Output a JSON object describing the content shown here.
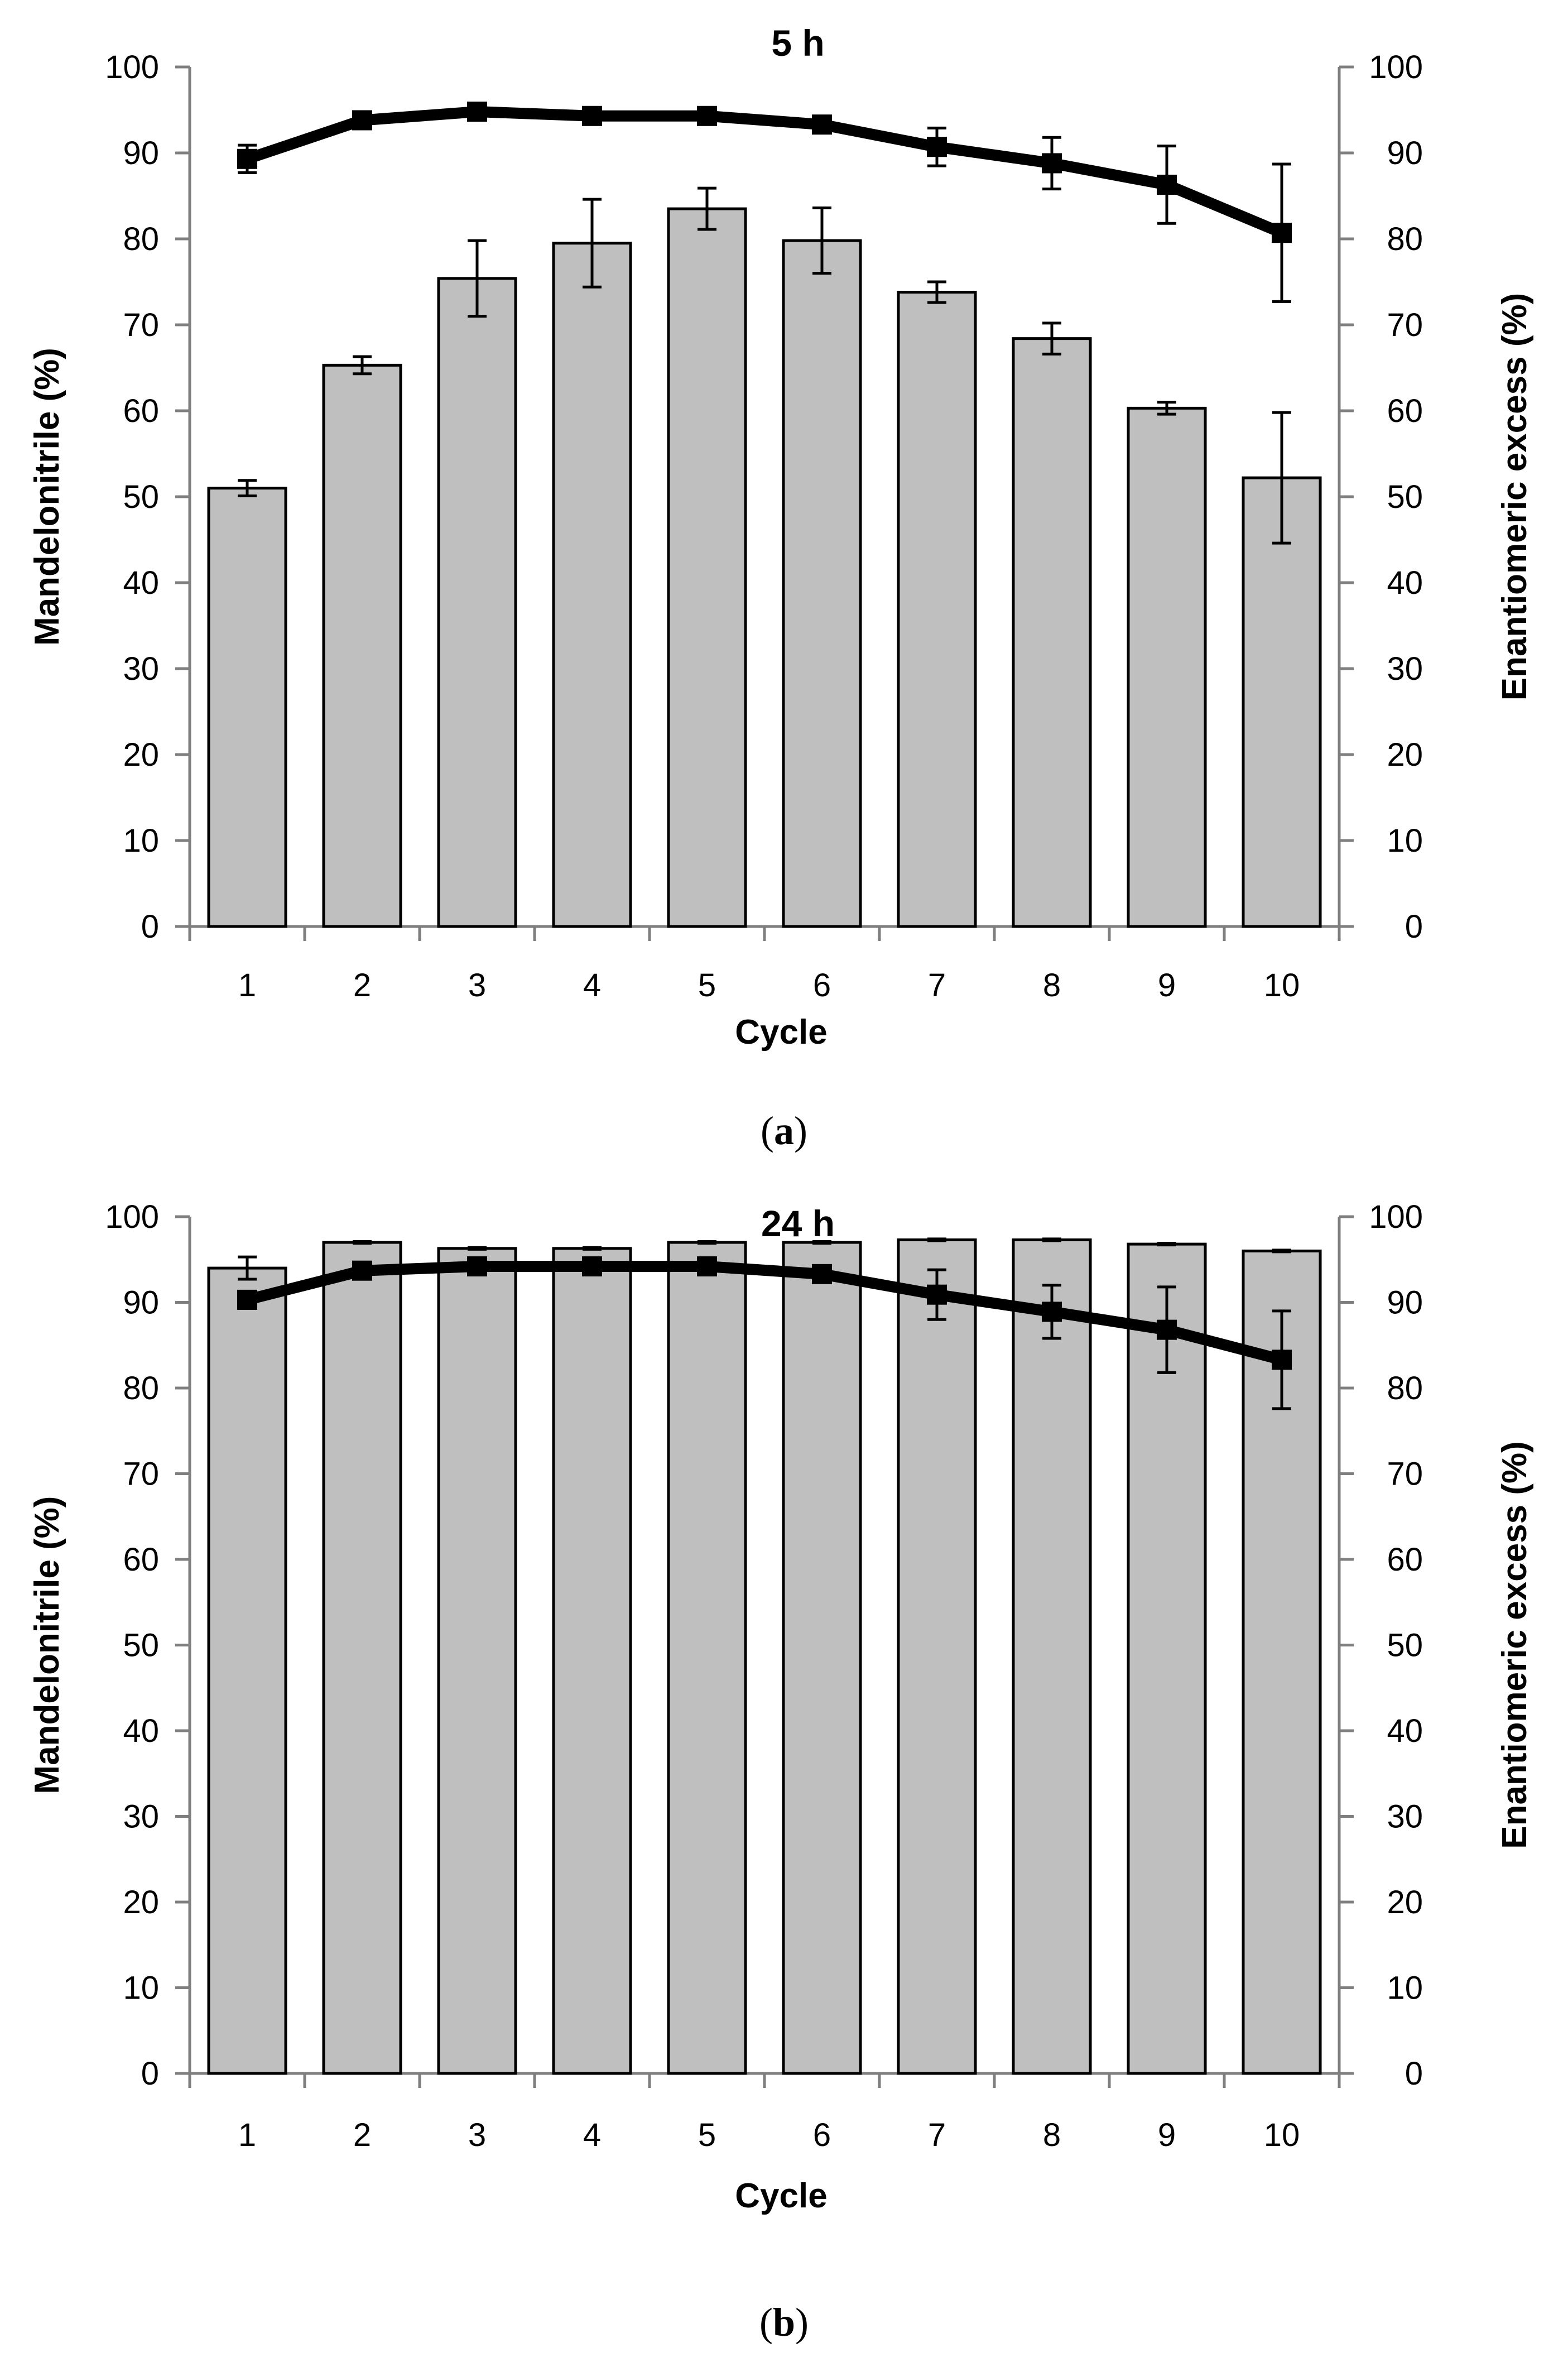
{
  "chart_data": [
    {
      "panel_label": "(a)",
      "type": "bar+line",
      "title": "5 h",
      "xlabel": "Cycle",
      "ylabel": "Mandelonitrile (%)",
      "y2label": "Enantiomeric excess (%)",
      "ylim": [
        0,
        100
      ],
      "y2lim": [
        0,
        100
      ],
      "yticks": [
        "0",
        "10",
        "20",
        "30",
        "40",
        "50",
        "60",
        "70",
        "80",
        "90",
        "100"
      ],
      "categories": [
        "1",
        "2",
        "3",
        "4",
        "5",
        "6",
        "7",
        "8",
        "9",
        "10"
      ],
      "series": [
        {
          "name": "Mandelonitrile",
          "kind": "bar",
          "axis": "left",
          "values": [
            51.0,
            65.3,
            75.4,
            79.5,
            83.5,
            79.8,
            73.8,
            68.4,
            60.3,
            52.2
          ],
          "errors": [
            0.9,
            1.0,
            4.4,
            5.1,
            2.4,
            3.8,
            1.2,
            1.8,
            0.7,
            7.6
          ]
        },
        {
          "name": "Enantiomeric excess",
          "kind": "line",
          "axis": "right",
          "values": [
            89.3,
            93.8,
            94.8,
            94.3,
            94.3,
            93.3,
            90.7,
            88.8,
            86.3,
            80.7
          ],
          "errors": [
            1.6,
            0.4,
            0.4,
            0.4,
            0.4,
            0.4,
            2.2,
            3.0,
            4.5,
            8.0
          ]
        }
      ]
    },
    {
      "panel_label": "(b)",
      "type": "bar+line",
      "title": "24 h",
      "xlabel": "Cycle",
      "ylabel": "Mandelonitrile (%)",
      "y2label": "Enantiomeric excess (%)",
      "ylim": [
        0,
        100
      ],
      "y2lim": [
        0,
        100
      ],
      "yticks": [
        "0",
        "10",
        "20",
        "30",
        "40",
        "50",
        "60",
        "70",
        "80",
        "90",
        "100"
      ],
      "categories": [
        "1",
        "2",
        "3",
        "4",
        "5",
        "6",
        "7",
        "8",
        "9",
        "10"
      ],
      "series": [
        {
          "name": "Mandelonitrile",
          "kind": "bar",
          "axis": "left",
          "values": [
            94.0,
            97.0,
            96.3,
            96.3,
            97.0,
            97.0,
            97.3,
            97.3,
            96.8,
            96.0
          ],
          "errors": [
            1.3,
            0.1,
            0.1,
            0.1,
            0.1,
            0.1,
            0.1,
            0.1,
            0.1,
            0.1
          ]
        },
        {
          "name": "Enantiomeric excess",
          "kind": "line",
          "axis": "right",
          "values": [
            90.3,
            93.7,
            94.2,
            94.2,
            94.2,
            93.3,
            90.9,
            88.9,
            86.8,
            83.3
          ],
          "errors": [
            1.0,
            0.3,
            0.4,
            0.8,
            0.5,
            0.6,
            2.9,
            3.1,
            5.0,
            5.7
          ]
        }
      ]
    }
  ]
}
